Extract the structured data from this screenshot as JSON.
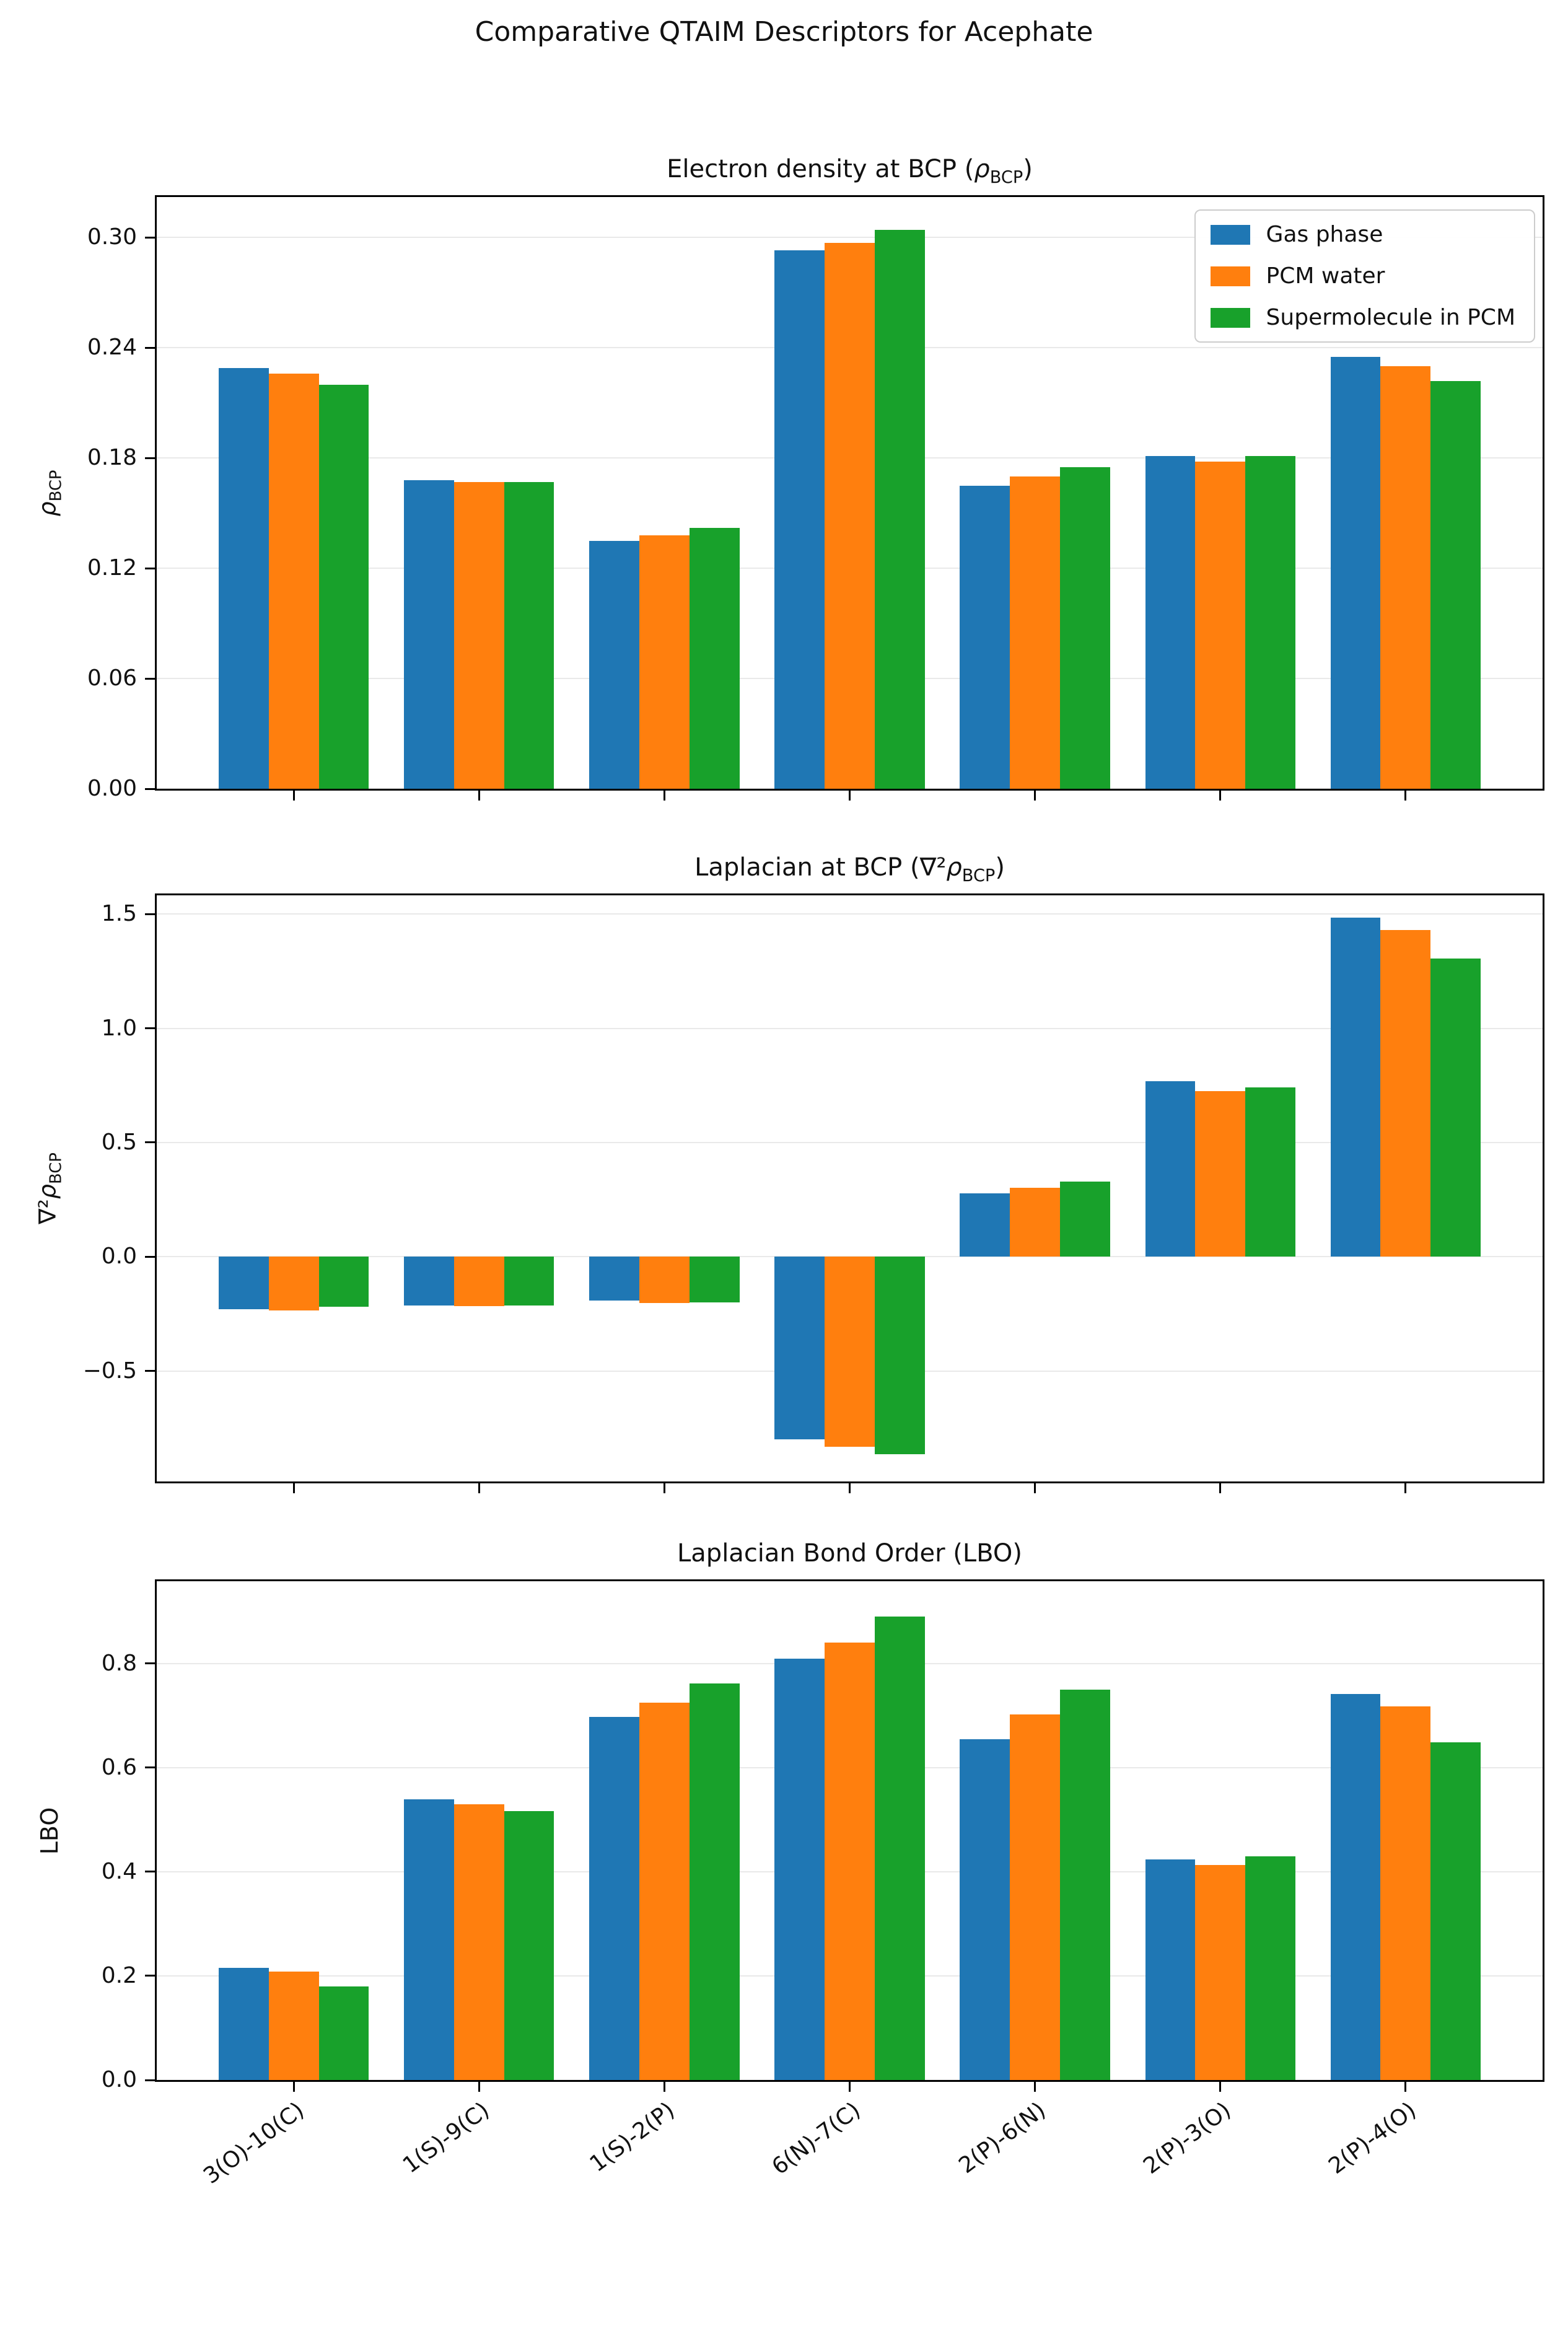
{
  "figure": {
    "title": "Comparative QTAIM Descriptors for Acephate",
    "background": "#ffffff"
  },
  "legend": {
    "position": "upper right of first subplot",
    "items": [
      {
        "label": "Gas phase",
        "color": "#1f77b4"
      },
      {
        "label": "PCM water",
        "color": "#ff7f0e"
      },
      {
        "label": "Supermolecule in PCM",
        "color": "#18a12b"
      }
    ]
  },
  "categories": [
    "3(O)-10(C)",
    "1(S)-9(C)",
    "1(S)-2(P)",
    "6(N)-7(C)",
    "2(P)-6(N)",
    "2(P)-3(O)",
    "2(P)-4(O)"
  ],
  "chart_data": [
    {
      "type": "bar",
      "title": {
        "pre": "Electron density at BCP (",
        "italic": "ρ",
        "sub": "BCP",
        "post": ")"
      },
      "ylabel": {
        "pre": "",
        "italic": "ρ",
        "sub": "BCP",
        "post": ""
      },
      "categories": [
        "3(O)-10(C)",
        "1(S)-9(C)",
        "1(S)-2(P)",
        "6(N)-7(C)",
        "2(P)-6(N)",
        "2(P)-3(O)",
        "2(P)-4(O)"
      ],
      "series": [
        {
          "name": "Gas phase",
          "color": "#1f77b4",
          "values": [
            0.229,
            0.168,
            0.135,
            0.293,
            0.165,
            0.181,
            0.235
          ]
        },
        {
          "name": "PCM water",
          "color": "#ff7f0e",
          "values": [
            0.226,
            0.167,
            0.138,
            0.297,
            0.17,
            0.178,
            0.23
          ]
        },
        {
          "name": "Supermolecule in PCM",
          "color": "#18a12b",
          "values": [
            0.22,
            0.167,
            0.142,
            0.304,
            0.175,
            0.181,
            0.222
          ]
        }
      ],
      "ylim": [
        0,
        0.322
      ],
      "yticks": [
        {
          "value": 0.0,
          "label": "0.00"
        },
        {
          "value": 0.06,
          "label": "0.06"
        },
        {
          "value": 0.12,
          "label": "0.12"
        },
        {
          "value": 0.18,
          "label": "0.18"
        },
        {
          "value": 0.24,
          "label": "0.24"
        },
        {
          "value": 0.3,
          "label": "0.30"
        }
      ],
      "grid": true,
      "show_x_labels": false,
      "has_legend": true
    },
    {
      "type": "bar",
      "title": {
        "pre": "Laplacian at BCP (∇²",
        "italic": "ρ",
        "sub": "BCP",
        "post": ")"
      },
      "ylabel": {
        "pre": "∇²",
        "italic": "ρ",
        "sub": "BCP",
        "post": ""
      },
      "categories": [
        "3(O)-10(C)",
        "1(S)-9(C)",
        "1(S)-2(P)",
        "6(N)-7(C)",
        "2(P)-6(N)",
        "2(P)-3(O)",
        "2(P)-4(O)"
      ],
      "series": [
        {
          "name": "Gas phase",
          "color": "#1f77b4",
          "values": [
            -0.229,
            -0.214,
            -0.193,
            -0.8,
            0.276,
            0.768,
            1.485
          ]
        },
        {
          "name": "PCM water",
          "color": "#ff7f0e",
          "values": [
            -0.235,
            -0.217,
            -0.203,
            -0.833,
            0.303,
            0.725,
            1.43
          ]
        },
        {
          "name": "Supermolecule in PCM",
          "color": "#18a12b",
          "values": [
            -0.219,
            -0.214,
            -0.201,
            -0.865,
            0.33,
            0.74,
            1.304
          ]
        }
      ],
      "ylim": [
        -0.984,
        1.582
      ],
      "yticks": [
        {
          "value": -0.5,
          "label": "−0.5"
        },
        {
          "value": 0.0,
          "label": "0.0"
        },
        {
          "value": 0.5,
          "label": "0.5"
        },
        {
          "value": 1.0,
          "label": "1.0"
        },
        {
          "value": 1.5,
          "label": "1.5"
        }
      ],
      "grid": true,
      "show_x_labels": false,
      "has_legend": false
    },
    {
      "type": "bar",
      "title": {
        "pre": "Laplacian Bond Order (LBO)",
        "italic": "",
        "sub": "",
        "post": ""
      },
      "ylabel": {
        "pre": "LBO",
        "italic": "",
        "sub": "",
        "post": ""
      },
      "categories": [
        "3(O)-10(C)",
        "1(S)-9(C)",
        "1(S)-2(P)",
        "6(N)-7(C)",
        "2(P)-6(N)",
        "2(P)-3(O)",
        "2(P)-4(O)"
      ],
      "series": [
        {
          "name": "Gas phase",
          "color": "#1f77b4",
          "values": [
            0.215,
            0.539,
            0.697,
            0.809,
            0.655,
            0.424,
            0.742
          ]
        },
        {
          "name": "PCM water",
          "color": "#ff7f0e",
          "values": [
            0.208,
            0.53,
            0.725,
            0.84,
            0.702,
            0.413,
            0.718
          ]
        },
        {
          "name": "Supermolecule in PCM",
          "color": "#18a12b",
          "values": [
            0.18,
            0.516,
            0.762,
            0.89,
            0.75,
            0.43,
            0.648
          ]
        }
      ],
      "ylim": [
        0,
        0.958
      ],
      "yticks": [
        {
          "value": 0.0,
          "label": "0.0"
        },
        {
          "value": 0.2,
          "label": "0.2"
        },
        {
          "value": 0.4,
          "label": "0.4"
        },
        {
          "value": 0.6,
          "label": "0.6"
        },
        {
          "value": 0.8,
          "label": "0.8"
        }
      ],
      "grid": true,
      "show_x_labels": true,
      "x_tick_rotation": -37,
      "has_legend": false
    }
  ]
}
